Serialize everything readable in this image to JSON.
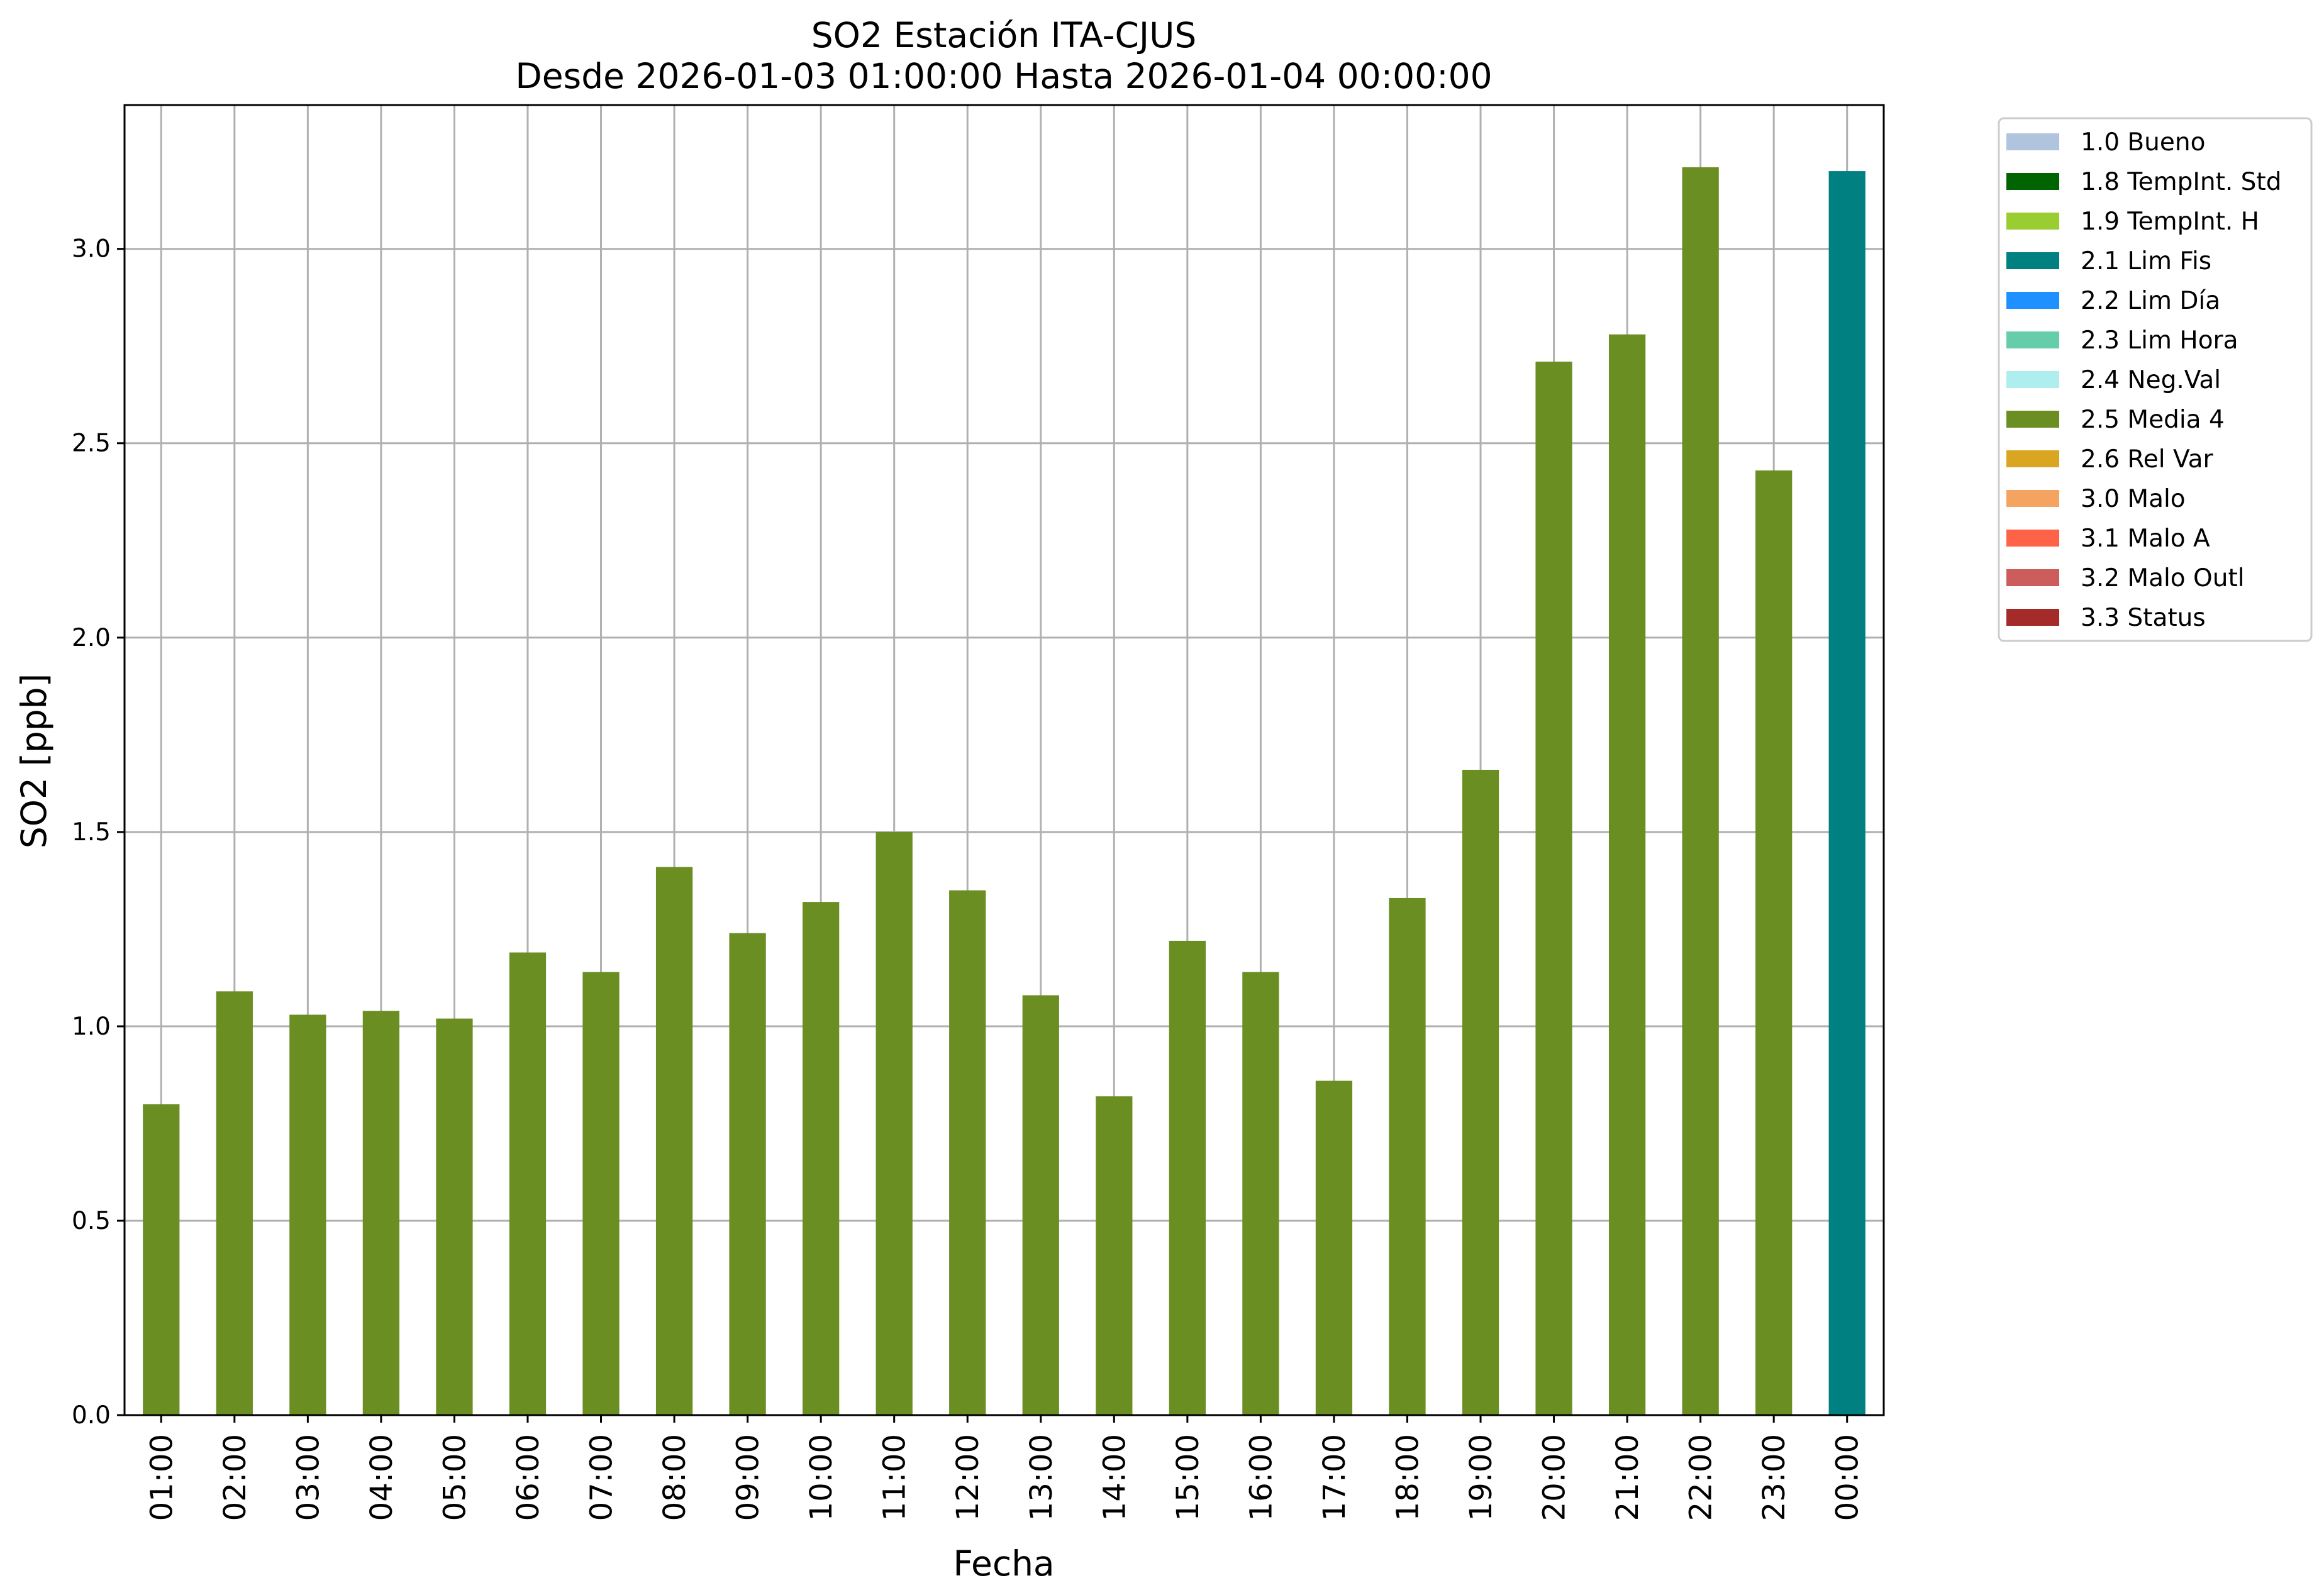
{
  "chart_data": {
    "type": "bar",
    "title": "SO2 Estación ITA-CJUS",
    "subtitle": "Desde 2026-01-03 01:00:00 Hasta 2026-01-04 00:00:00",
    "xlabel": "Fecha",
    "ylabel": "SO2 [ppb]",
    "ylim": [
      0,
      3.37
    ],
    "yticks": [
      "0.0",
      "0.5",
      "1.0",
      "1.5",
      "2.0",
      "2.5",
      "3.0"
    ],
    "grid": true,
    "legend_position": "outside-right",
    "categories": [
      "01:00",
      "02:00",
      "03:00",
      "04:00",
      "05:00",
      "06:00",
      "07:00",
      "08:00",
      "09:00",
      "10:00",
      "11:00",
      "12:00",
      "13:00",
      "14:00",
      "15:00",
      "16:00",
      "17:00",
      "18:00",
      "19:00",
      "20:00",
      "21:00",
      "22:00",
      "23:00",
      "00:00"
    ],
    "values": [
      0.8,
      1.09,
      1.03,
      1.04,
      1.02,
      1.19,
      1.14,
      1.41,
      1.24,
      1.32,
      1.5,
      1.35,
      1.08,
      0.82,
      1.22,
      1.14,
      0.86,
      1.33,
      1.66,
      2.71,
      2.78,
      3.21,
      2.43,
      3.2
    ],
    "bar_flags": [
      "2.5 Media 4",
      "2.5 Media 4",
      "2.5 Media 4",
      "2.5 Media 4",
      "2.5 Media 4",
      "2.5 Media 4",
      "2.5 Media 4",
      "2.5 Media 4",
      "2.5 Media 4",
      "2.5 Media 4",
      "2.5 Media 4",
      "2.5 Media 4",
      "2.5 Media 4",
      "2.5 Media 4",
      "2.5 Media 4",
      "2.5 Media 4",
      "2.5 Media 4",
      "2.5 Media 4",
      "2.5 Media 4",
      "2.5 Media 4",
      "2.5 Media 4",
      "2.5 Media 4",
      "2.5 Media 4",
      "2.1 Lim Fis"
    ],
    "legend": [
      {
        "label": "1.0 Bueno",
        "color": "#b0c4de"
      },
      {
        "label": "1.8 TempInt. Std",
        "color": "#006400"
      },
      {
        "label": "1.9 TempInt. H",
        "color": "#9acd32"
      },
      {
        "label": "2.1 Lim Fis",
        "color": "#008080"
      },
      {
        "label": "2.2 Lim Día",
        "color": "#1e90ff"
      },
      {
        "label": "2.3 Lim Hora",
        "color": "#66cdaa"
      },
      {
        "label": "2.4 Neg.Val",
        "color": "#afeeee"
      },
      {
        "label": "2.5 Media 4",
        "color": "#6b8e23"
      },
      {
        "label": "2.6 Rel Var",
        "color": "#daa520"
      },
      {
        "label": "3.0 Malo",
        "color": "#f4a460"
      },
      {
        "label": "3.1 Malo A",
        "color": "#ff6347"
      },
      {
        "label": "3.2 Malo Outl",
        "color": "#cd5c5c"
      },
      {
        "label": "3.3 Status",
        "color": "#a52a2a"
      }
    ]
  }
}
